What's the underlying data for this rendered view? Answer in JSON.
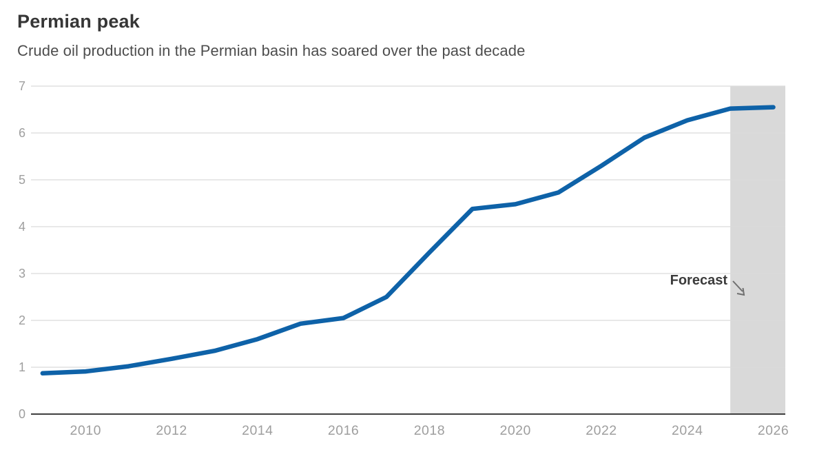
{
  "header": {
    "title": "Permian peak",
    "subtitle": "Crude oil production in the Permian basin has soared over the past decade"
  },
  "chart_data": {
    "type": "line",
    "x": [
      2009,
      2010,
      2011,
      2012,
      2013,
      2014,
      2015,
      2016,
      2017,
      2018,
      2019,
      2020,
      2021,
      2022,
      2023,
      2024,
      2025,
      2026
    ],
    "values": [
      0.87,
      0.91,
      1.02,
      1.18,
      1.35,
      1.6,
      1.93,
      2.05,
      2.5,
      3.45,
      4.38,
      4.48,
      4.73,
      5.3,
      5.9,
      6.27,
      6.52,
      6.55
    ],
    "title": "Permian peak",
    "subtitle": "Crude oil production in the Permian basin has soared over the past decade",
    "xlabel": "",
    "ylabel": "",
    "xticks": [
      2010,
      2012,
      2014,
      2016,
      2018,
      2020,
      2022,
      2024,
      2026
    ],
    "yticks": [
      0,
      1,
      2,
      3,
      4,
      5,
      6,
      7
    ],
    "xlim": [
      2008.73,
      2026.28
    ],
    "ylim": [
      0,
      7
    ],
    "grid": "horizontal",
    "legend": "none",
    "forecast": {
      "label": "Forecast",
      "start_year": 2025
    },
    "colors": {
      "line": "#0e62a8",
      "forecast_band": "#d9d9d9",
      "gridline": "#dadada",
      "baseline": "#3f3f3f",
      "tick_label": "#9e9e9e",
      "annotation_text": "#3b3b3b",
      "annotation_arrow": "#6f6f6f"
    }
  }
}
